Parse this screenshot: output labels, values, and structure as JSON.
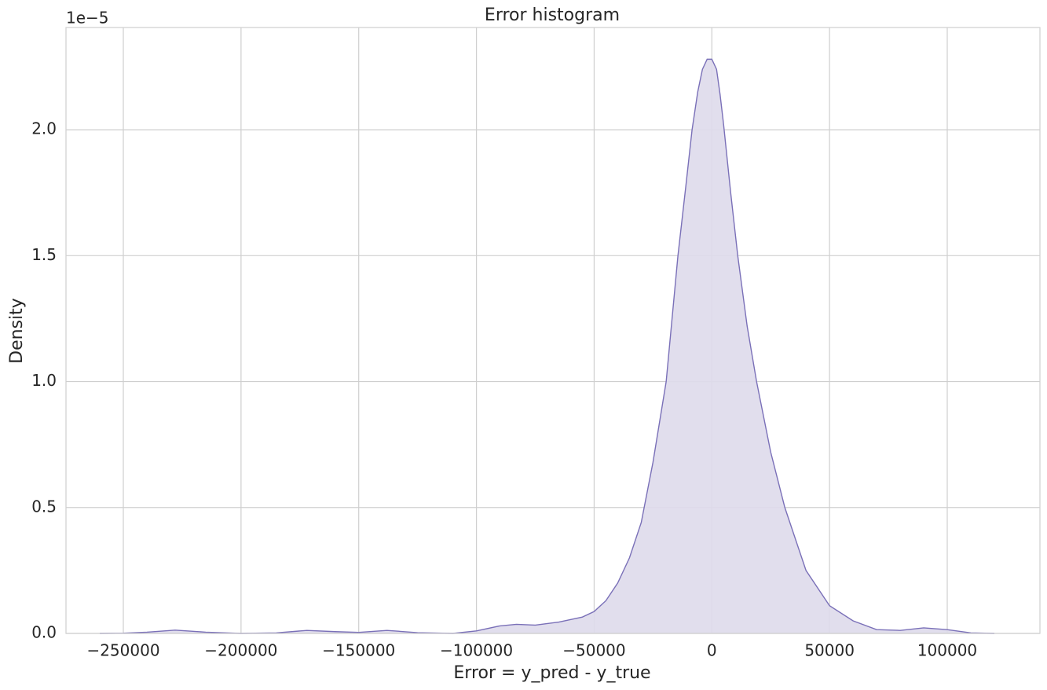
{
  "chart_data": {
    "type": "area",
    "title": "Error histogram",
    "x_label": "Error = y_pred - y_true",
    "y_label": "Density",
    "y_offset_label": "1e−5",
    "line_color": "#7a70b8",
    "fill_color": "#dedaeb",
    "grid": true,
    "xlim": [
      -274360,
      139370
    ],
    "ylim": [
      0,
      2.406
    ],
    "xticks": [
      {
        "value": -250000,
        "label": "−250000"
      },
      {
        "value": -200000,
        "label": "−200000"
      },
      {
        "value": -150000,
        "label": "−150000"
      },
      {
        "value": -100000,
        "label": "−100000"
      },
      {
        "value": -50000,
        "label": "−50000"
      },
      0,
      50000,
      100000
    ],
    "yticks": [
      {
        "value": 0,
        "label": "0.0"
      },
      0.5,
      {
        "value": 1,
        "label": "1.0"
      },
      1.5,
      {
        "value": 2,
        "label": "2.0"
      }
    ],
    "x": [
      -260000,
      -250000,
      -240000,
      -228000,
      -215000,
      -200000,
      -185000,
      -172000,
      -160000,
      -150000,
      -138000,
      -125000,
      -110000,
      -100000,
      -90000,
      -83000,
      -75000,
      -65000,
      -55000,
      -50000,
      -45000,
      -40000,
      -35000,
      -30000,
      -25000,
      -19400,
      -14400,
      -11000,
      -8400,
      -6000,
      -4000,
      -2000,
      0,
      2000,
      3500,
      5000,
      8000,
      11000,
      15000,
      19000,
      25000,
      31000,
      40000,
      50000,
      60000,
      70000,
      80000,
      90000,
      100000,
      110000,
      120000
    ],
    "values": [
      0,
      0.001,
      0.005,
      0.013,
      0.005,
      0,
      0.002,
      0.012,
      0.007,
      0.004,
      0.012,
      0.003,
      0,
      0.01,
      0.03,
      0.036,
      0.033,
      0.045,
      0.065,
      0.087,
      0.13,
      0.2,
      0.3,
      0.44,
      0.68,
      1.0,
      1.5,
      1.78,
      2.0,
      2.15,
      2.24,
      2.28,
      2.28,
      2.24,
      2.14,
      2.02,
      1.75,
      1.5,
      1.22,
      1.0,
      0.72,
      0.5,
      0.25,
      0.11,
      0.05,
      0.015,
      0.012,
      0.022,
      0.015,
      0.002,
      0
    ]
  }
}
